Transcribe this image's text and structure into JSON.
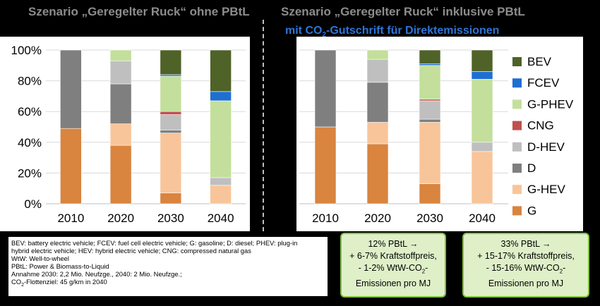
{
  "titles": {
    "left": "Szenario „Geregelter Ruck“ ohne PBtL",
    "right": "Szenario „Geregelter Ruck“ inklusive PBtL",
    "right_sub_pre": "mit CO",
    "right_sub_sub": "2",
    "right_sub_post": "-Gutschrift für Direktemissionen"
  },
  "colors": {
    "G": "#d9843f",
    "G-HEV": "#f8c59a",
    "D": "#7f7f7f",
    "D-HEV": "#bfbfbf",
    "CNG": "#c0504d",
    "G-PHEV": "#c3df9b",
    "FCEV": "#1f6fd0",
    "BEV": "#4f6228"
  },
  "chart_data": [
    {
      "type": "bar",
      "stacked": true,
      "title": "Szenario „Geregelter Ruck“ ohne PBtL",
      "categories": [
        "2010",
        "2020",
        "2030",
        "2040"
      ],
      "y_ticks": [
        "0%",
        "20%",
        "40%",
        "60%",
        "80%",
        "100%"
      ],
      "ylim": [
        0,
        100
      ],
      "grid": true,
      "series": [
        {
          "name": "G",
          "values": [
            49,
            38,
            7,
            0
          ]
        },
        {
          "name": "G-HEV",
          "values": [
            0,
            14,
            39,
            12
          ]
        },
        {
          "name": "D",
          "values": [
            51,
            26,
            2,
            0
          ]
        },
        {
          "name": "D-HEV",
          "values": [
            0,
            15,
            10,
            5
          ]
        },
        {
          "name": "CNG",
          "values": [
            0,
            0,
            2,
            0
          ]
        },
        {
          "name": "G-PHEV",
          "values": [
            0,
            7,
            23,
            50
          ]
        },
        {
          "name": "FCEV",
          "values": [
            0,
            0,
            1,
            6
          ]
        },
        {
          "name": "BEV",
          "values": [
            0,
            0,
            16,
            27
          ]
        }
      ]
    },
    {
      "type": "bar",
      "stacked": true,
      "title": "Szenario „Geregelter Ruck“ inklusive PBtL mit CO2-Gutschrift für Direktemissionen",
      "categories": [
        "2010",
        "2020",
        "2030",
        "2040"
      ],
      "ylim": [
        0,
        100
      ],
      "legend_position": "right",
      "series": [
        {
          "name": "G",
          "values": [
            50,
            39,
            13,
            0
          ]
        },
        {
          "name": "G-HEV",
          "values": [
            0,
            14,
            40,
            34
          ]
        },
        {
          "name": "D",
          "values": [
            50,
            26,
            2,
            0
          ]
        },
        {
          "name": "D-HEV",
          "values": [
            0,
            15,
            12,
            6
          ]
        },
        {
          "name": "CNG",
          "values": [
            0,
            0,
            1,
            0
          ]
        },
        {
          "name": "G-PHEV",
          "values": [
            0,
            6,
            22,
            41
          ]
        },
        {
          "name": "FCEV",
          "values": [
            0,
            0,
            1,
            5
          ]
        },
        {
          "name": "BEV",
          "values": [
            0,
            0,
            9,
            14
          ]
        }
      ]
    }
  ],
  "legend": [
    "BEV",
    "FCEV",
    "G-PHEV",
    "CNG",
    "D-HEV",
    "D",
    "G-HEV",
    "G"
  ],
  "notes": [
    "BEV: battery electric vehicle; FCEV: fuel cell electric vehicle; G: gasoline; D: diesel; PHEV: plug-in",
    "hybrid electric vehicle; HEV: hybrid electric vehicle; CNG: compressed natural gas",
    "WtW: Well-to-wheel",
    "PBtL: Power & Biomass-to-Liquid",
    "Annahme 2030: 2,2 Mio. Neufzge., 2040: 2 Mio. Neufzge.;"
  ],
  "note_last": {
    "pre": "CO",
    "sub": "2",
    "post": "-Flottenziel:  45 g/km in 2040"
  },
  "box2030": {
    "l1": "12% PBtL →",
    "l2": "+ 6-7% Kraftstoffpreis,",
    "l3_pre": "- 1-2% WtW-CO",
    "l3_sub": "2",
    "l3_post": "-",
    "l4": "Emissionen pro MJ"
  },
  "box2040": {
    "l1": "33% PBtL →",
    "l2": "+ 15-17% Kraftstoffpreis,",
    "l3_pre": "- 15-16% WtW-CO",
    "l3_sub": "2",
    "l3_post": "-",
    "l4": "Emissionen pro MJ"
  }
}
